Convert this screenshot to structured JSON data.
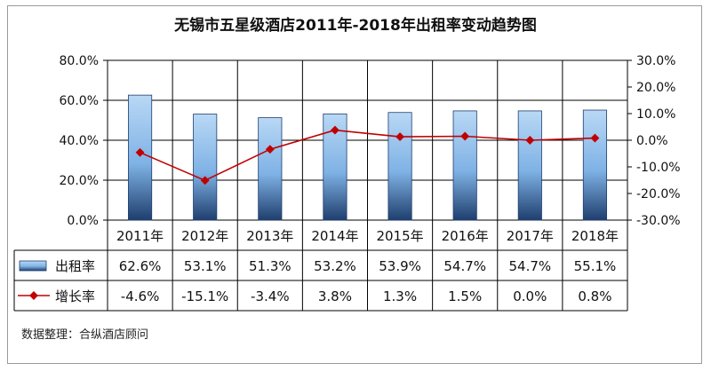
{
  "title": "无锡市五星级酒店2011年-2018年出租率变动趋势图",
  "source": "数据整理：合纵酒店顾问",
  "chart_data": {
    "type": "bar+line",
    "categories": [
      "2011年",
      "2012年",
      "2013年",
      "2014年",
      "2015年",
      "2016年",
      "2017年",
      "2018年"
    ],
    "left_axis": {
      "ylim": [
        0,
        80
      ],
      "ticks": [
        "0.0%",
        "20.0%",
        "40.0%",
        "60.0%",
        "80.0%"
      ],
      "tick_values": [
        0,
        20,
        40,
        60,
        80
      ]
    },
    "right_axis": {
      "ylim": [
        -30,
        30
      ],
      "ticks": [
        "-30.0%",
        "-20.0%",
        "-10.0%",
        "0.0%",
        "10.0%",
        "20.0%",
        "30.0%"
      ],
      "tick_values": [
        -30,
        -20,
        -10,
        0,
        10,
        20,
        30
      ]
    },
    "grid": true,
    "series": [
      {
        "name": "出租率",
        "type": "bar",
        "axis": "left",
        "values": [
          62.6,
          53.1,
          51.3,
          53.2,
          53.9,
          54.7,
          54.7,
          55.1
        ],
        "labels": [
          "62.6%",
          "53.1%",
          "51.3%",
          "53.2%",
          "53.9%",
          "54.7%",
          "54.7%",
          "55.1%"
        ],
        "color": "#7fb2e5"
      },
      {
        "name": "增长率",
        "type": "line",
        "axis": "right",
        "values": [
          -4.6,
          -15.1,
          -3.4,
          3.8,
          1.3,
          1.5,
          0.0,
          0.8
        ],
        "labels": [
          "-4.6%",
          "-15.1%",
          "-3.4%",
          "3.8%",
          "1.3%",
          "1.5%",
          "0.0%",
          "0.8%"
        ],
        "color": "#c00000"
      }
    ],
    "legend_placement": "data-table-left"
  }
}
